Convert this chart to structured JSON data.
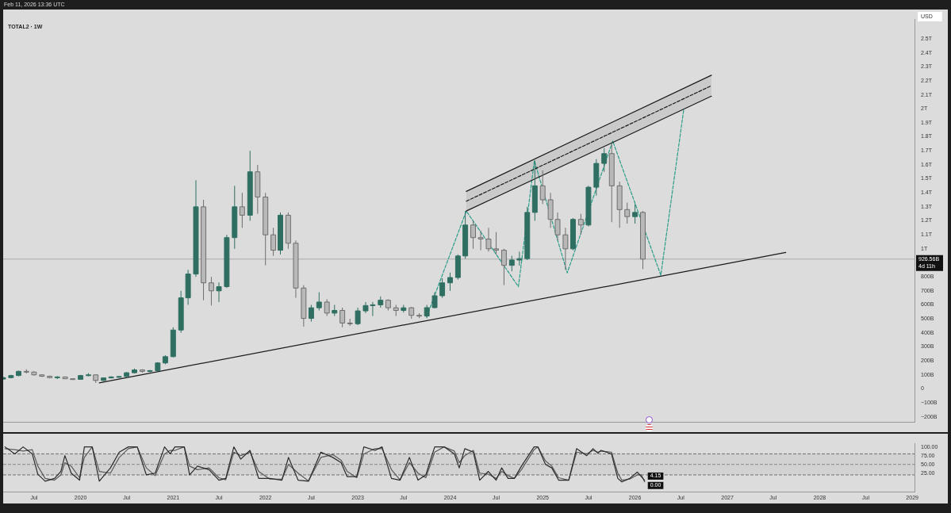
{
  "chart_data": [
    {
      "type": "candlestick",
      "title": "TOTAL2 · 1W",
      "ylabel": "USD",
      "colors": [
        "#2f6f62",
        "#2f6f62",
        "#2f6f62",
        "#b8b8b8",
        "#b8b8b8",
        "#b8b8b8",
        "#b8b8b8",
        "#2f6f62",
        "#b8b8b8",
        "#b8b8b8",
        "#2f6f62",
        "#2f6f62",
        "#b8b8b8",
        "#2f6f62",
        "#2f6f62",
        "#2f6f62",
        "#2f6f62",
        "#2f6f62",
        "#b8b8b8",
        "#2f6f62",
        "#2f6f62",
        "#2f6f62",
        "#2f6f62",
        "#2f6f62",
        "#2f6f62",
        "#2f6f62",
        "#b8b8b8",
        "#b8b8b8",
        "#2f6f62",
        "#2f6f62",
        "#2f6f62",
        "#b8b8b8",
        "#2f6f62",
        "#b8b8b8",
        "#b8b8b8",
        "#b8b8b8",
        "#2f6f62",
        "#b8b8b8",
        "#b8b8b8",
        "#b8b8b8",
        "#2f6f62",
        "#2f6f62",
        "#b8b8b8",
        "#2f6f62",
        "#b8b8b8",
        "#b8b8b8",
        "#2f6f62",
        "#2f6f62",
        "#2f6f62",
        "#2f6f62",
        "#b8b8b8",
        "#b8b8b8",
        "#2f6f62",
        "#b8b8b8",
        "#b8b8b8",
        "#2f6f62",
        "#2f6f62",
        "#2f6f62",
        "#2f6f62",
        "#2f6f62",
        "#2f6f62",
        "#b8b8b8",
        "#b8b8b8",
        "#b8b8b8",
        "#b8b8b8",
        "#b8b8b8",
        "#2f6f62",
        "#2f6f62",
        "#2f6f62",
        "#2f6f62",
        "#b8b8b8",
        "#b8b8b8",
        "#b8b8b8",
        "#b8b8b8",
        "#2f6f62",
        "#b8b8b8",
        "#2f6f62",
        "#2f6f62",
        "#2f6f62",
        "#b8b8b8",
        "#b8b8b8",
        "#b8b8b8",
        "#2f6f62",
        "#b8b8b8"
      ],
      "annotations": [
        "Feb 11, 2026 13:36 UTC",
        "4d 11h"
      ],
      "x": [
        "2019-03",
        "2019-04",
        "2019-05",
        "2019-06",
        "2019-07",
        "2019-08",
        "2019-09",
        "2019-10",
        "2019-11",
        "2019-12",
        "2020-01",
        "2020-02",
        "2020-03",
        "2020-04",
        "2020-05",
        "2020-06",
        "2020-07",
        "2020-08",
        "2020-09",
        "2020-10",
        "2020-11",
        "2020-12",
        "2021-01",
        "2021-02",
        "2021-03",
        "2021-04",
        "2021-05",
        "2021-06",
        "2021-07",
        "2021-08",
        "2021-09",
        "2021-10",
        "2021-11",
        "2021-12",
        "2022-01",
        "2022-02",
        "2022-03",
        "2022-04",
        "2022-05",
        "2022-06",
        "2022-07",
        "2022-08",
        "2022-09",
        "2022-10",
        "2022-11",
        "2022-12",
        "2023-01",
        "2023-02",
        "2023-03",
        "2023-04",
        "2023-05",
        "2023-06",
        "2023-07",
        "2023-08",
        "2023-09",
        "2023-10",
        "2023-11",
        "2023-12",
        "2024-01",
        "2024-02",
        "2024-03",
        "2024-04",
        "2024-05",
        "2024-06",
        "2024-07",
        "2024-08",
        "2024-09",
        "2024-10",
        "2024-11",
        "2024-12",
        "2025-01",
        "2025-02",
        "2025-03",
        "2025-04",
        "2025-05",
        "2025-06",
        "2025-07",
        "2025-08",
        "2025-09",
        "2025-10",
        "2025-11",
        "2025-12",
        "2026-01",
        "2026-02"
      ],
      "ohlc": [
        [
          70000000000.0,
          85000000000.0,
          65000000000.0,
          80000000000.0
        ],
        [
          80000000000.0,
          100000000000.0,
          75000000000.0,
          95000000000.0
        ],
        [
          95000000000.0,
          130000000000.0,
          90000000000.0,
          125000000000.0
        ],
        [
          125000000000.0,
          140000000000.0,
          110000000000.0,
          120000000000.0
        ],
        [
          120000000000.0,
          125000000000.0,
          95000000000.0,
          100000000000.0
        ],
        [
          100000000000.0,
          105000000000.0,
          85000000000.0,
          90000000000.0
        ],
        [
          90000000000.0,
          95000000000.0,
          75000000000.0,
          80000000000.0
        ],
        [
          80000000000.0,
          90000000000.0,
          70000000000.0,
          85000000000.0
        ],
        [
          85000000000.0,
          88000000000.0,
          70000000000.0,
          72000000000.0
        ],
        [
          72000000000.0,
          75000000000.0,
          65000000000.0,
          68000000000.0
        ],
        [
          68000000000.0,
          100000000000.0,
          65000000000.0,
          95000000000.0
        ],
        [
          95000000000.0,
          112000000000.0,
          90000000000.0,
          100000000000.0
        ],
        [
          100000000000.0,
          102000000000.0,
          43000000000.0,
          60000000000.0
        ],
        [
          60000000000.0,
          80000000000.0,
          55000000000.0,
          78000000000.0
        ],
        [
          78000000000.0,
          90000000000.0,
          75000000000.0,
          85000000000.0
        ],
        [
          85000000000.0,
          92000000000.0,
          80000000000.0,
          88000000000.0
        ],
        [
          88000000000.0,
          120000000000.0,
          85000000000.0,
          115000000000.0
        ],
        [
          115000000000.0,
          145000000000.0,
          110000000000.0,
          135000000000.0
        ],
        [
          135000000000.0,
          140000000000.0,
          115000000000.0,
          125000000000.0
        ],
        [
          125000000000.0,
          135000000000.0,
          118000000000.0,
          130000000000.0
        ],
        [
          130000000000.0,
          190000000000.0,
          125000000000.0,
          185000000000.0
        ],
        [
          185000000000.0,
          240000000000.0,
          175000000000.0,
          230000000000.0
        ],
        [
          230000000000.0,
          440000000000.0,
          225000000000.0,
          420000000000.0
        ],
        [
          420000000000.0,
          700000000000.0,
          400000000000.0,
          650000000000.0
        ],
        [
          650000000000.0,
          850000000000.0,
          600000000000.0,
          820000000000.0
        ],
        [
          820000000000.0,
          1490000000000.0,
          800000000000.0,
          1300000000000.0
        ],
        [
          1300000000000.0,
          1350000000000.0,
          633000000000.0,
          757000000000.0
        ],
        [
          757000000000.0,
          800000000000.0,
          595000000000.0,
          700000000000.0
        ],
        [
          700000000000.0,
          760000000000.0,
          620000000000.0,
          730000000000.0
        ],
        [
          730000000000.0,
          1100000000000.0,
          720000000000.0,
          1080000000000.0
        ],
        [
          1080000000000.0,
          1450000000000.0,
          1000000000000.0,
          1300000000000.0
        ],
        [
          1300000000000.0,
          1400000000000.0,
          1150000000000.0,
          1240000000000.0
        ],
        [
          1240000000000.0,
          1700000000000.0,
          1200000000000.0,
          1550000000000.0
        ],
        [
          1550000000000.0,
          1600000000000.0,
          1250000000000.0,
          1370000000000.0
        ],
        [
          1370000000000.0,
          1400000000000.0,
          882000000000.0,
          1100000000000.0
        ],
        [
          1100000000000.0,
          1150000000000.0,
          950000000000.0,
          990000000000.0
        ],
        [
          990000000000.0,
          1260000000000.0,
          960000000000.0,
          1240000000000.0
        ],
        [
          1240000000000.0,
          1260000000000.0,
          1000000000000.0,
          1040000000000.0
        ],
        [
          1040000000000.0,
          1060000000000.0,
          650000000000.0,
          720000000000.0
        ],
        [
          720000000000.0,
          740000000000.0,
          444000000000.0,
          503000000000.0
        ],
        [
          503000000000.0,
          600000000000.0,
          480000000000.0,
          579000000000.0
        ],
        [
          579000000000.0,
          690000000000.0,
          560000000000.0,
          620000000000.0
        ],
        [
          620000000000.0,
          640000000000.0,
          520000000000.0,
          541000000000.0
        ],
        [
          541000000000.0,
          600000000000.0,
          520000000000.0,
          560000000000.0
        ],
        [
          560000000000.0,
          580000000000.0,
          440000000000.0,
          470000000000.0
        ],
        [
          470000000000.0,
          500000000000.0,
          450000000000.0,
          465000000000.0
        ],
        [
          465000000000.0,
          580000000000.0,
          455000000000.0,
          557000000000.0
        ],
        [
          557000000000.0,
          620000000000.0,
          540000000000.0,
          595000000000.0
        ],
        [
          595000000000.0,
          620000000000.0,
          520000000000.0,
          600000000000.0
        ],
        [
          600000000000.0,
          660000000000.0,
          580000000000.0,
          633000000000.0
        ],
        [
          633000000000.0,
          640000000000.0,
          560000000000.0,
          579000000000.0
        ],
        [
          579000000000.0,
          600000000000.0,
          520000000000.0,
          560000000000.0
        ],
        [
          560000000000.0,
          600000000000.0,
          545000000000.0,
          579000000000.0
        ],
        [
          579000000000.0,
          585000000000.0,
          500000000000.0,
          525000000000.0
        ],
        [
          525000000000.0,
          540000000000.0,
          505000000000.0,
          520000000000.0
        ],
        [
          520000000000.0,
          600000000000.0,
          505000000000.0,
          580000000000.0
        ],
        [
          580000000000.0,
          690000000000.0,
          575000000000.0,
          665000000000.0
        ],
        [
          665000000000.0,
          790000000000.0,
          650000000000.0,
          757000000000.0
        ],
        [
          757000000000.0,
          830000000000.0,
          700000000000.0,
          795000000000.0
        ],
        [
          795000000000.0,
          960000000000.0,
          780000000000.0,
          949000000000.0
        ],
        [
          949000000000.0,
          1270000000000.0,
          930000000000.0,
          1170000000000.0
        ],
        [
          1170000000000.0,
          1200000000000.0,
          1000000000000.0,
          1080000000000.0
        ],
        [
          1080000000000.0,
          1130000000000.0,
          990000000000.0,
          1070000000000.0
        ],
        [
          1070000000000.0,
          1150000000000.0,
          980000000000.0,
          1000000000000.0
        ],
        [
          1000000000000.0,
          1120000000000.0,
          960000000000.0,
          990000000000.0
        ],
        [
          990000000000.0,
          1000000000000.0,
          741000000000.0,
          882000000000.0
        ],
        [
          882000000000.0,
          950000000000.0,
          840000000000.0,
          920000000000.0
        ],
        [
          920000000000.0,
          980000000000.0,
          880000000000.0,
          930000000000.0
        ],
        [
          930000000000.0,
          1300000000000.0,
          920000000000.0,
          1260000000000.0
        ],
        [
          1260000000000.0,
          1630000000000.0,
          1200000000000.0,
          1450000000000.0
        ],
        [
          1450000000000.0,
          1560000000000.0,
          1320000000000.0,
          1350000000000.0
        ],
        [
          1350000000000.0,
          1400000000000.0,
          1150000000000.0,
          1210000000000.0
        ],
        [
          1210000000000.0,
          1260000000000.0,
          1060000000000.0,
          1100000000000.0
        ],
        [
          1100000000000.0,
          1150000000000.0,
          849000000000.0,
          1000000000000.0
        ],
        [
          1000000000000.0,
          1220000000000.0,
          990000000000.0,
          1210000000000.0
        ],
        [
          1210000000000.0,
          1250000000000.0,
          1100000000000.0,
          1170000000000.0
        ],
        [
          1170000000000.0,
          1450000000000.0,
          1160000000000.0,
          1440000000000.0
        ],
        [
          1440000000000.0,
          1640000000000.0,
          1380000000000.0,
          1610000000000.0
        ],
        [
          1610000000000.0,
          1720000000000.0,
          1550000000000.0,
          1680000000000.0
        ],
        [
          1680000000000.0,
          1760000000000.0,
          1190000000000.0,
          1450000000000.0
        ],
        [
          1450000000000.0,
          1480000000000.0,
          1150000000000.0,
          1280000000000.0
        ],
        [
          1280000000000.0,
          1330000000000.0,
          1180000000000.0,
          1230000000000.0
        ],
        [
          1230000000000.0,
          1320000000000.0,
          1180000000000.0,
          1260000000000.0
        ],
        [
          1260000000000.0,
          1270000000000.0,
          855000000000.0,
          926560000000.0
        ]
      ],
      "series": [
        {
          "type": "line",
          "color": "#1a1a1a",
          "x": [
            "2020-03-15",
            "2027-08-20"
          ],
          "values": [
            43000000000.0,
            974000000000.0
          ]
        },
        {
          "type": "line",
          "color": "#1a1a1a",
          "x": [
            "2024-03-05",
            "2026-10-30"
          ],
          "values": [
            1410000000000.0,
            2240000000000.0
          ]
        },
        {
          "type": "line",
          "color": "#1a1a1a",
          "x": [
            "2024-03-05",
            "2026-10-30"
          ],
          "values": [
            1270000000000.0,
            2090000000000.0
          ]
        },
        {
          "type": "line",
          "color": "#1a1a1a",
          "line_style": "dashed",
          "x": [
            "2024-03-05",
            "2026-10-30"
          ],
          "values": [
            1340000000000.0,
            2165000000000.0
          ],
          "lower": [
            1270000000000.0,
            2090000000000.0
          ],
          "upper": [
            1410000000000.0,
            2240000000000.0
          ]
        },
        {
          "type": "line",
          "color": "#2a9d8a",
          "line_style": "dashed",
          "x": [
            "2023-09-30",
            "2024-03-05",
            "2024-09-27",
            "2024-11-29",
            "2025-04-08",
            "2025-10-05",
            "2026-04-13",
            "2026-07-13"
          ],
          "values": [
            514000000000.0,
            1270000000000.0,
            730000000000.0,
            1630000000000.0,
            828000000000.0,
            1770000000000.0,
            811000000000.0,
            2000000000000.0
          ]
        }
      ],
      "ref_lines": [
        {
          "axis": "y",
          "value": 926560000000.0,
          "label": "926.56B",
          "color": "#9a9a9a"
        }
      ],
      "xlim": [
        "2019-03-01",
        "2029-01-10"
      ],
      "ylim": [
        -240000000000.0,
        2640000000000.0
      ],
      "yticks": [
        {
          "value": -200000000000.0,
          "label": "−200B"
        },
        {
          "value": -100000000000.0,
          "label": "−100B"
        },
        0,
        {
          "value": 100000000000.0,
          "label": "100B"
        },
        {
          "value": 200000000000.0,
          "label": "200B"
        },
        {
          "value": 300000000000.0,
          "label": "300B"
        },
        {
          "value": 400000000000.0,
          "label": "400B"
        },
        {
          "value": 500000000000.0,
          "label": "500B"
        },
        {
          "value": 600000000000.0,
          "label": "600B"
        },
        {
          "value": 700000000000.0,
          "label": "700B"
        },
        {
          "value": 800000000000.0,
          "label": "800B"
        },
        {
          "value": 1000000000000.0,
          "label": "1T"
        },
        {
          "value": 1100000000000.0,
          "label": "1.1T"
        },
        {
          "value": 1200000000000.0,
          "label": "1.2T"
        },
        {
          "value": 1300000000000.0,
          "label": "1.3T"
        },
        {
          "value": 1400000000000.0,
          "label": "1.4T"
        },
        {
          "value": 1500000000000.0,
          "label": "1.5T"
        },
        {
          "value": 1600000000000.0,
          "label": "1.6T"
        },
        {
          "value": 1700000000000.0,
          "label": "1.7T"
        },
        {
          "value": 1800000000000.0,
          "label": "1.8T"
        },
        {
          "value": 1900000000000.0,
          "label": "1.9T"
        },
        {
          "value": 2000000000000.0,
          "label": "2T"
        },
        {
          "value": 2100000000000.0,
          "label": "2.1T"
        },
        {
          "value": 2200000000000.0,
          "label": "2.2T"
        },
        {
          "value": 2300000000000.0,
          "label": "2.3T"
        },
        {
          "value": 2400000000000.0,
          "label": "2.4T"
        },
        {
          "value": 2500000000000.0,
          "label": "2.5T"
        }
      ],
      "tick_labels": "y"
    },
    {
      "type": "line",
      "x": [
        "2019-03-08",
        "2019-04-16",
        "2019-05-19",
        "2019-06-24",
        "2019-07-16",
        "2019-08-14",
        "2019-09-20",
        "2019-10-15",
        "2019-10-31",
        "2019-11-25",
        "2019-12-28",
        "2020-01-16",
        "2020-02-16",
        "2020-03-15",
        "2020-04-28",
        "2020-06-02",
        "2020-07-08",
        "2020-08-12",
        "2020-09-17",
        "2020-10-22",
        "2020-11-28",
        "2020-12-20",
        "2021-01-08",
        "2021-02-14",
        "2021-03-07",
        "2021-04-07",
        "2021-05-23",
        "2021-07-01",
        "2021-07-28",
        "2021-08-29",
        "2021-09-25",
        "2021-11-01",
        "2021-12-05",
        "2022-01-18",
        "2022-03-07",
        "2022-04-02",
        "2022-05-10",
        "2022-06-20",
        "2022-08-08",
        "2022-09-24",
        "2022-10-27",
        "2022-11-20",
        "2022-12-28",
        "2023-01-25",
        "2023-03-10",
        "2023-04-07",
        "2023-05-14",
        "2023-06-17",
        "2023-07-24",
        "2023-08-27",
        "2023-09-27",
        "2023-11-01",
        "2023-12-08",
        "2024-01-18",
        "2024-02-06",
        "2024-02-28",
        "2024-04-02",
        "2024-04-27",
        "2024-05-31",
        "2024-07-01",
        "2024-07-23",
        "2024-08-17",
        "2024-09-11",
        "2024-10-09",
        "2024-11-28",
        "2024-12-13",
        "2025-01-12",
        "2025-02-06",
        "2025-03-05",
        "2025-04-14",
        "2025-05-15",
        "2025-06-24",
        "2025-07-19",
        "2025-08-07",
        "2025-08-20",
        "2025-09-30",
        "2025-10-25",
        "2025-11-10",
        "2025-12-11",
        "2026-01-10",
        "2026-01-26",
        "2026-02-08"
      ],
      "series": [
        {
          "color": "#2a2a2a",
          "values": [
            100,
            80,
            100,
            80,
            22,
            2,
            10,
            30,
            75,
            25,
            5,
            100,
            100,
            2,
            40,
            85,
            100,
            100,
            20,
            25,
            100,
            80,
            100,
            100,
            20,
            45,
            35,
            5,
            10,
            100,
            65,
            90,
            10,
            10,
            5,
            70,
            5,
            2,
            85,
            70,
            55,
            15,
            15,
            100,
            90,
            100,
            10,
            5,
            70,
            5,
            20,
            100,
            100,
            80,
            40,
            95,
            85,
            5,
            30,
            5,
            40,
            10,
            10,
            45,
            100,
            100,
            50,
            40,
            5,
            5,
            95,
            75,
            95,
            82,
            90,
            80,
            10,
            0,
            10,
            28,
            15,
            4.15
          ],
          "value_labels": [
            null,
            null,
            null,
            null,
            null,
            null,
            null,
            null,
            null,
            null,
            null,
            null,
            null,
            null,
            null,
            null,
            null,
            null,
            null,
            null,
            null,
            null,
            null,
            null,
            null,
            null,
            null,
            null,
            null,
            null,
            null,
            null,
            null,
            null,
            null,
            null,
            null,
            null,
            null,
            null,
            null,
            null,
            null,
            null,
            null,
            null,
            null,
            null,
            null,
            null,
            null,
            null,
            null,
            null,
            null,
            null,
            null,
            null,
            null,
            null,
            null,
            null,
            null,
            null,
            null,
            null,
            null,
            null,
            null,
            null,
            null,
            null,
            null,
            null,
            null,
            null,
            null,
            null,
            null,
            null,
            null,
            "4.15"
          ]
        },
        {
          "color": "#5a5a5a",
          "values": [
            95,
            92,
            88,
            92,
            45,
            10,
            5,
            20,
            55,
            45,
            12,
            70,
            100,
            30,
            25,
            70,
            95,
            100,
            40,
            18,
            80,
            90,
            90,
            100,
            45,
            35,
            40,
            12,
            6,
            85,
            75,
            85,
            30,
            8,
            8,
            50,
            25,
            3,
            70,
            78,
            62,
            30,
            12,
            80,
            95,
            95,
            35,
            6,
            55,
            25,
            12,
            85,
            100,
            88,
            55,
            75,
            90,
            25,
            22,
            10,
            30,
            18,
            10,
            35,
            92,
            100,
            60,
            45,
            12,
            5,
            85,
            80,
            90,
            85,
            88,
            85,
            25,
            5,
            8,
            20,
            20,
            0
          ],
          "value_labels": [
            null,
            null,
            null,
            null,
            null,
            null,
            null,
            null,
            null,
            null,
            null,
            null,
            null,
            null,
            null,
            null,
            null,
            null,
            null,
            null,
            null,
            null,
            null,
            null,
            null,
            null,
            null,
            null,
            null,
            null,
            null,
            null,
            null,
            null,
            null,
            null,
            null,
            null,
            null,
            null,
            null,
            null,
            null,
            null,
            null,
            null,
            null,
            null,
            null,
            null,
            null,
            null,
            null,
            null,
            null,
            null,
            null,
            null,
            null,
            null,
            null,
            null,
            null,
            null,
            null,
            null,
            null,
            null,
            null,
            null,
            null,
            null,
            null,
            null,
            null,
            null,
            null,
            null,
            null,
            null,
            null,
            "0.00"
          ]
        }
      ],
      "ref_lines": [
        {
          "axis": "y",
          "value": 80,
          "color": "#555555",
          "line_style": "dashed"
        },
        {
          "axis": "y",
          "value": 50,
          "color": "#777777",
          "line_style": "dashed"
        },
        {
          "axis": "y",
          "value": 20,
          "color": "#555555",
          "line_style": "dashed"
        }
      ],
      "bands": [
        {
          "axis": "y",
          "from": 20,
          "to": 80,
          "color": "#d2d2d2"
        }
      ],
      "xlim": [
        "2019-03-01",
        "2029-01-10"
      ],
      "ylim": [
        -29,
        110
      ],
      "xticks": [
        {
          "value": "2019-07",
          "label": "Jul"
        },
        {
          "value": "2020",
          "label": "2020"
        },
        {
          "value": "2020-07",
          "label": "Jul"
        },
        {
          "value": "2021",
          "label": "2021"
        },
        {
          "value": "2021-07",
          "label": "Jul"
        },
        {
          "value": "2022",
          "label": "2022"
        },
        {
          "value": "2022-07",
          "label": "Jul"
        },
        {
          "value": "2023",
          "label": "2023"
        },
        {
          "value": "2023-07",
          "label": "Jul"
        },
        {
          "value": "2024",
          "label": "2024"
        },
        {
          "value": "2024-07",
          "label": "Jul"
        },
        {
          "value": "2025",
          "label": "2025"
        },
        {
          "value": "2025-07",
          "label": "Jul"
        },
        {
          "value": "2026",
          "label": "2026"
        },
        {
          "value": "2026-07",
          "label": "Jul"
        },
        {
          "value": "2027",
          "label": "2027"
        },
        {
          "value": "2027-07",
          "label": "Jul"
        },
        {
          "value": "2028",
          "label": "2028"
        },
        {
          "value": "2028-07",
          "label": "Jul"
        },
        {
          "value": "2029",
          "label": "2029"
        }
      ],
      "yticks": [
        {
          "value": 100,
          "label": "100.00"
        },
        {
          "value": 75,
          "label": "75.00"
        },
        {
          "value": 50,
          "label": "50.00"
        },
        {
          "value": 25,
          "label": "25.00"
        }
      ]
    }
  ]
}
